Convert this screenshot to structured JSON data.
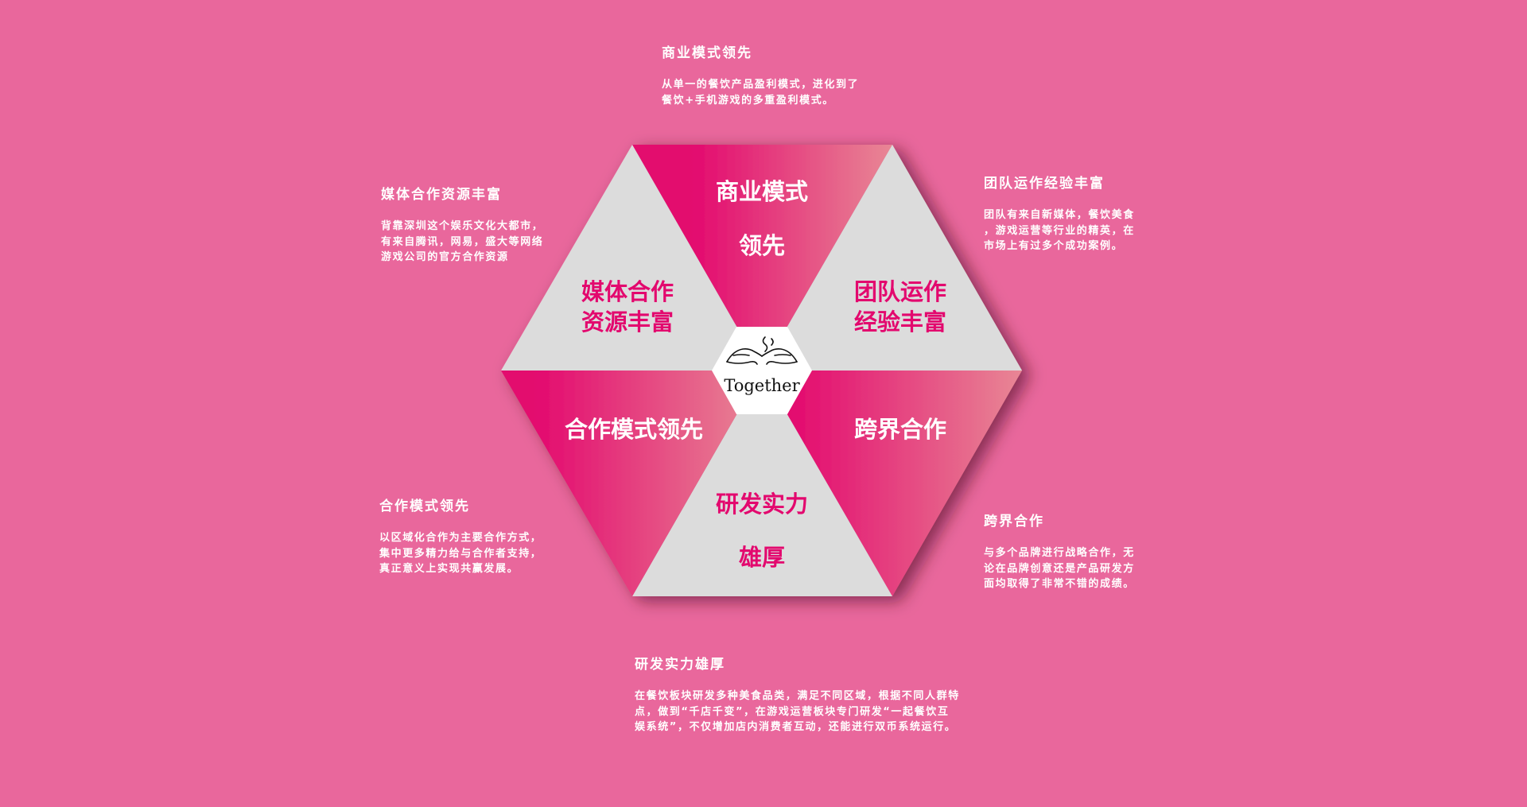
{
  "colors": {
    "background": "#e9679c",
    "accent": "#e3086e",
    "light_pink": "#e88795",
    "grey": "#dcdcdc",
    "white": "#ffffff"
  },
  "center": {
    "logo_text": "Together"
  },
  "segments": {
    "top": {
      "line1": "商业模式",
      "line2": "领先"
    },
    "upper_left": {
      "line1": "媒体合作",
      "line2": "资源丰富"
    },
    "upper_right": {
      "line1": "团队运作",
      "line2": "经验丰富"
    },
    "lower_left": {
      "line1": "合作模式领先"
    },
    "lower_right": {
      "line1": "跨界合作"
    },
    "bottom": {
      "line1": "研发实力",
      "line2": "雄厚"
    }
  },
  "descriptions": {
    "top": {
      "title": "商业模式领先",
      "text": "从单一的餐饮产品盈利模式，进化到了\n餐饮+手机游戏的多重盈利模式。"
    },
    "upper_left": {
      "title": "媒体合作资源丰富",
      "text": "背靠深圳这个娱乐文化大都市，\n有来自腾讯，网易，盛大等网络\n游戏公司的官方合作资源"
    },
    "upper_right": {
      "title": "团队运作经验丰富",
      "text": "团队有来自新媒体，餐饮美食\n，游戏运营等行业的精英，在\n市场上有过多个成功案例。"
    },
    "lower_left": {
      "title": "合作模式领先",
      "text": "以区域化合作为主要合作方式，\n集中更多精力给与合作者支持，\n真正意义上实现共赢发展。"
    },
    "lower_right": {
      "title": "跨界合作",
      "text": "与多个品牌进行战略合作，无\n论在品牌创意还是产品研发方\n面均取得了非常不错的成绩。"
    },
    "bottom": {
      "title": "研发实力雄厚",
      "text": "在餐饮板块研发多种美食品类，满足不同区域，根据不同人群特\n点，做到“千店千变”，在游戏运营板块专门研发“一起餐饮互\n娱系统”，不仅增加店内消费者互动，还能进行双币系统运行。"
    }
  }
}
